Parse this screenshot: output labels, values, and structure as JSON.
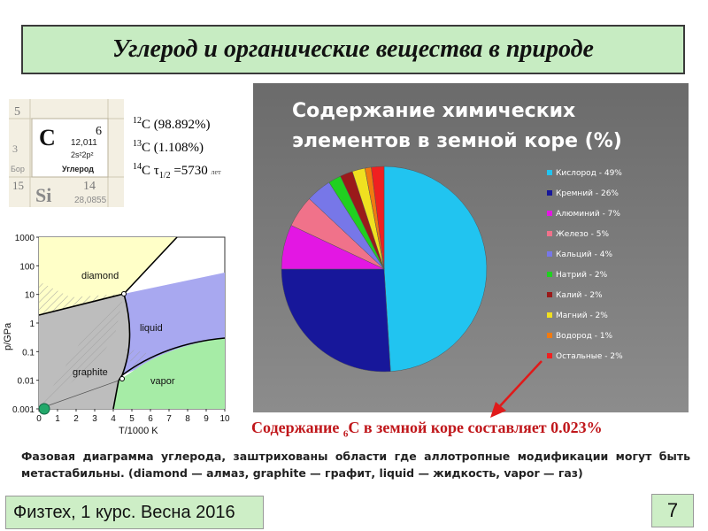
{
  "slide": {
    "title": "Углерод и органические вещества в природе",
    "footer": "Физтех, 1 курс. Весна 2016",
    "page_number": "7"
  },
  "periodic_table": {
    "cells": [
      {
        "symbol": "C",
        "number": "6",
        "mass": "12,011",
        "config": "2s²2p²",
        "name": "Углерод"
      },
      {
        "symbol": "Si",
        "number": "14",
        "mass": "28,0855"
      }
    ],
    "fragments": [
      "5",
      "3",
      "Бор",
      "15"
    ]
  },
  "isotopes": {
    "c12": {
      "mass": "12",
      "symbol": "C",
      "text": "(98.892%)"
    },
    "c13": {
      "mass": "13",
      "symbol": "C",
      "text": "(1.108%)"
    },
    "c14": {
      "mass": "14",
      "symbol": "C",
      "tau": "τ",
      "sub": "1/2",
      "text": "=5730",
      "suffix": "лет"
    }
  },
  "caption": {
    "before": "Содержание ",
    "sub": "6",
    "after": "С в земной коре составляет 0.023%"
  },
  "description": "Фазовая диаграмма углерода, заштрихованы области где аллотропные модификации могут быть метастабильны. (diamond — алмаз, graphite — графит, liquid — жидкость, vapor — газ)",
  "colors": {
    "title_bg": "#c7ecc2",
    "footer_bg": "#cdeec6",
    "caption_red": "#c0171b",
    "pie_bg": "#808080"
  },
  "chart_data": [
    {
      "type": "pie",
      "title": [
        "Содержание химических",
        "элементов в земной коре (%)"
      ],
      "categories": [
        "Кислород",
        "Кремний",
        "Алюминий",
        "Железо",
        "Кальций",
        "Натрий",
        "Калий",
        "Магний",
        "Водород",
        "Остальные"
      ],
      "values": [
        49,
        26,
        7,
        5,
        4,
        2,
        2,
        2,
        1,
        2
      ],
      "legend_labels": [
        "Кислород - 49%",
        "Кремний - 26%",
        "Алюминий - 7%",
        "Железо - 5%",
        "Кальций - 4%",
        "Натрий - 2%",
        "Калий - 2%",
        "Магний - 2%",
        "Водород - 1%",
        "Остальные - 2%"
      ],
      "colors": [
        "#21c4f0",
        "#17179a",
        "#e317e3",
        "#f0728a",
        "#7777e8",
        "#20d020",
        "#9a1a1a",
        "#f0e020",
        "#f07a10",
        "#f02020"
      ],
      "legend_position": "right"
    },
    {
      "type": "diagram",
      "xlabel": "T/1000 K",
      "ylabel": "p/GPa",
      "x_ticks": [
        "0",
        "1",
        "2",
        "3",
        "4",
        "5",
        "6",
        "7",
        "8",
        "9",
        "10"
      ],
      "xlim": [
        0,
        10
      ],
      "y_ticks": [
        "0.001",
        "0.01",
        "0.1",
        "1",
        "10",
        "100",
        "1000"
      ],
      "yscale": "log",
      "ylim": [
        0.001,
        1000
      ],
      "region_labels": [
        "diamond",
        "graphite",
        "liquid",
        "vapor"
      ],
      "region_colors": {
        "diamond": "#ffffc8",
        "graphite": "#bdbdbd",
        "liquid": "#a8a8f0",
        "vapor": "#a6eca6"
      }
    }
  ]
}
